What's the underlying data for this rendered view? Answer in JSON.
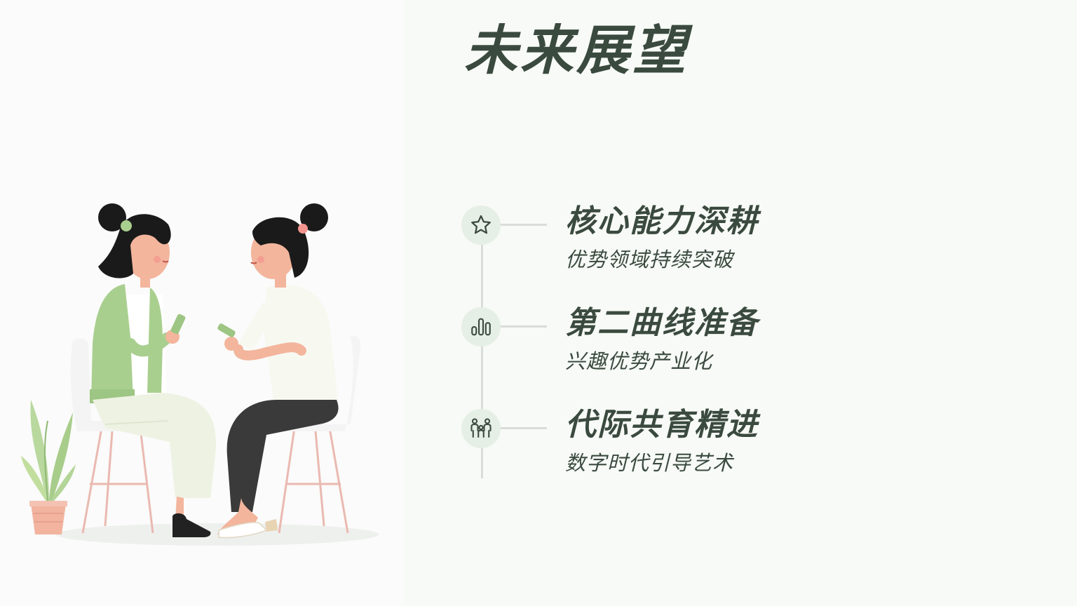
{
  "title": "未来展望",
  "items": [
    {
      "icon": "star-icon",
      "title": "核心能力深耕",
      "subtitle": "优势领域持续突破"
    },
    {
      "icon": "bar-chart-icon",
      "title": "第二曲线准备",
      "subtitle": "兴趣优势产业化"
    },
    {
      "icon": "family-icon",
      "title": "代际共育精进",
      "subtitle": "数字时代引导艺术"
    }
  ],
  "colors": {
    "text": "#3b4a3f",
    "icon_bg": "#e6efe5",
    "line": "#d9ddd9",
    "green_cardigan": "#a9cf8f"
  }
}
